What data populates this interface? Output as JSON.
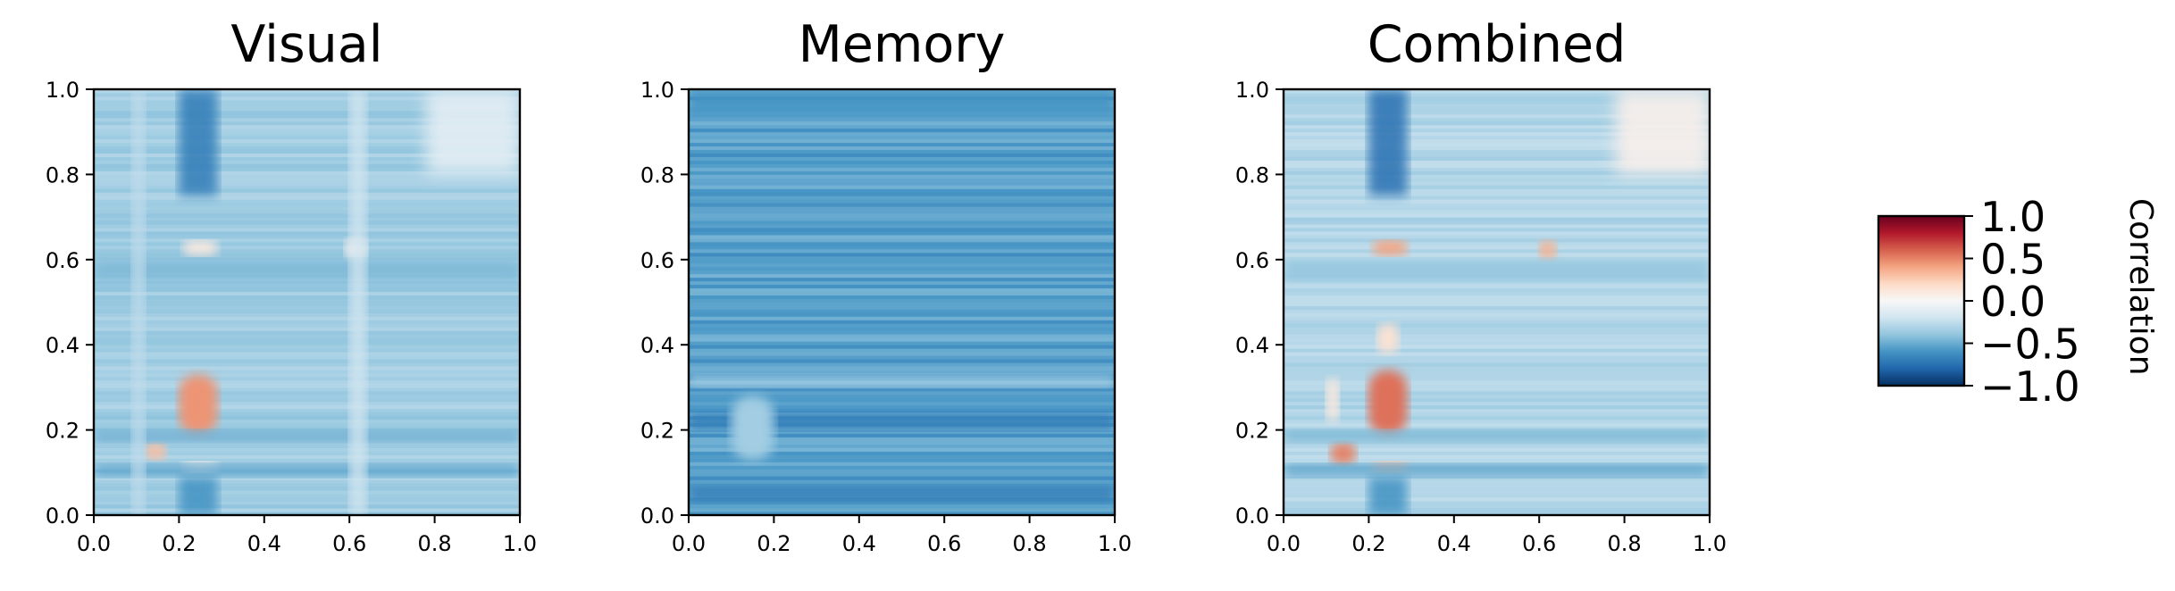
{
  "chart_data": {
    "type": "heatmap",
    "colormap": "RdBu_r",
    "vmin": -1.0,
    "vmax": 1.0,
    "panels": [
      {
        "title": "Visual",
        "xlim": [
          0.0,
          1.0
        ],
        "ylim": [
          0.0,
          1.0
        ],
        "xticks": [
          "0.0",
          "0.2",
          "0.4",
          "0.6",
          "0.8",
          "1.0"
        ],
        "yticks": [
          "0.0",
          "0.2",
          "0.4",
          "0.6",
          "0.8",
          "1.0"
        ],
        "base_value": -0.35,
        "features": [
          {
            "kind": "blob",
            "x": [
              0.2,
              0.29
            ],
            "y": [
              0.19,
              0.33
            ],
            "value": 0.45
          },
          {
            "kind": "blob",
            "x": [
              0.21,
              0.29
            ],
            "y": [
              0.1,
              0.125
            ],
            "value": 0.05
          },
          {
            "kind": "blob",
            "x": [
              0.21,
              0.29
            ],
            "y": [
              0.61,
              0.645
            ],
            "value": 0.1
          },
          {
            "kind": "blob",
            "x": [
              0.59,
              0.64
            ],
            "y": [
              0.6,
              0.65
            ],
            "value": 0.05
          },
          {
            "kind": "blob",
            "x": [
              0.12,
              0.17
            ],
            "y": [
              0.13,
              0.17
            ],
            "value": 0.3
          },
          {
            "kind": "vband",
            "x": [
              0.2,
              0.29
            ],
            "y": [
              0.75,
              1.0
            ],
            "value": -0.7
          },
          {
            "kind": "vband",
            "x": [
              0.2,
              0.29
            ],
            "y": [
              0.0,
              0.09
            ],
            "value": -0.6
          },
          {
            "kind": "hband",
            "x": [
              0.0,
              1.0
            ],
            "y": [
              0.09,
              0.12
            ],
            "value": -0.55
          },
          {
            "kind": "hband",
            "x": [
              0.0,
              1.0
            ],
            "y": [
              0.17,
              0.2
            ],
            "value": -0.5
          },
          {
            "kind": "hband",
            "x": [
              0.0,
              1.0
            ],
            "y": [
              0.55,
              0.6
            ],
            "value": -0.45
          },
          {
            "kind": "vband",
            "x": [
              0.6,
              0.64
            ],
            "y": [
              0.0,
              1.0
            ],
            "value": -0.2
          },
          {
            "kind": "vband",
            "x": [
              0.09,
              0.12
            ],
            "y": [
              0.0,
              1.0
            ],
            "value": -0.25
          },
          {
            "kind": "region",
            "x": [
              0.78,
              1.0
            ],
            "y": [
              0.8,
              1.0
            ],
            "value": -0.1
          }
        ]
      },
      {
        "title": "Memory",
        "xlim": [
          0.0,
          1.0
        ],
        "ylim": [
          0.0,
          1.0
        ],
        "xticks": [
          "0.0",
          "0.2",
          "0.4",
          "0.6",
          "0.8",
          "1.0"
        ],
        "yticks": [
          "0.0",
          "0.2",
          "0.4",
          "0.6",
          "0.8",
          "1.0"
        ],
        "base_value": -0.55,
        "features": [
          {
            "kind": "hband",
            "x": [
              0.0,
              1.0
            ],
            "y": [
              0.3,
              0.33
            ],
            "value": -0.35
          },
          {
            "kind": "hband",
            "x": [
              0.0,
              1.0
            ],
            "y": [
              0.2,
              0.24
            ],
            "value": -0.7
          },
          {
            "kind": "hband",
            "x": [
              0.0,
              1.0
            ],
            "y": [
              0.03,
              0.07
            ],
            "value": -0.7
          },
          {
            "kind": "hband",
            "x": [
              0.0,
              1.0
            ],
            "y": [
              0.94,
              1.0
            ],
            "value": -0.6
          },
          {
            "kind": "blob",
            "x": [
              0.1,
              0.2
            ],
            "y": [
              0.13,
              0.28
            ],
            "value": -0.35
          }
        ]
      },
      {
        "title": "Combined",
        "xlim": [
          0.0,
          1.0
        ],
        "ylim": [
          0.0,
          1.0
        ],
        "xticks": [
          "0.0",
          "0.2",
          "0.4",
          "0.6",
          "0.8",
          "1.0"
        ],
        "yticks": [
          "0.0",
          "0.2",
          "0.4",
          "0.6",
          "0.8",
          "1.0"
        ],
        "base_value": -0.3,
        "features": [
          {
            "kind": "blob",
            "x": [
              0.2,
              0.29
            ],
            "y": [
              0.19,
              0.34
            ],
            "value": 0.55
          },
          {
            "kind": "blob",
            "x": [
              0.22,
              0.27
            ],
            "y": [
              0.38,
              0.45
            ],
            "value": 0.15
          },
          {
            "kind": "blob",
            "x": [
              0.21,
              0.29
            ],
            "y": [
              0.1,
              0.125
            ],
            "value": 0.3
          },
          {
            "kind": "blob",
            "x": [
              0.21,
              0.29
            ],
            "y": [
              0.61,
              0.645
            ],
            "value": 0.4
          },
          {
            "kind": "blob",
            "x": [
              0.6,
              0.64
            ],
            "y": [
              0.6,
              0.645
            ],
            "value": 0.35
          },
          {
            "kind": "blob",
            "x": [
              0.11,
              0.17
            ],
            "y": [
              0.12,
              0.17
            ],
            "value": 0.5
          },
          {
            "kind": "blob",
            "x": [
              0.1,
              0.13
            ],
            "y": [
              0.22,
              0.32
            ],
            "value": 0.1
          },
          {
            "kind": "vband",
            "x": [
              0.2,
              0.29
            ],
            "y": [
              0.75,
              1.0
            ],
            "value": -0.75
          },
          {
            "kind": "vband",
            "x": [
              0.2,
              0.29
            ],
            "y": [
              0.0,
              0.09
            ],
            "value": -0.6
          },
          {
            "kind": "hband",
            "x": [
              0.0,
              1.0
            ],
            "y": [
              0.09,
              0.12
            ],
            "value": -0.55
          },
          {
            "kind": "hband",
            "x": [
              0.0,
              1.0
            ],
            "y": [
              0.17,
              0.2
            ],
            "value": -0.45
          },
          {
            "kind": "hband",
            "x": [
              0.0,
              1.0
            ],
            "y": [
              0.55,
              0.6
            ],
            "value": -0.4
          },
          {
            "kind": "region",
            "x": [
              0.78,
              1.0
            ],
            "y": [
              0.8,
              1.0
            ],
            "value": 0.05
          }
        ]
      }
    ],
    "colorbar": {
      "label": "Correlation",
      "ticks": [
        "1.0",
        "0.5",
        "0.0",
        "−0.5",
        "−1.0"
      ],
      "tick_values": [
        1.0,
        0.5,
        0.0,
        -0.5,
        -1.0
      ]
    }
  }
}
